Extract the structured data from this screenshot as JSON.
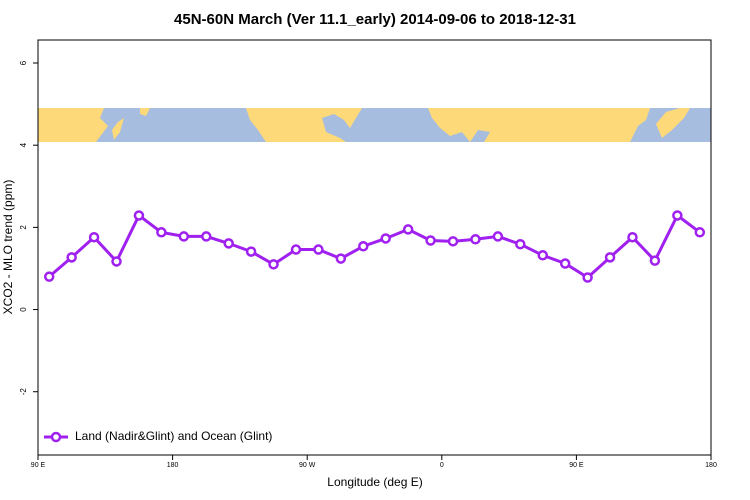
{
  "chart_data": {
    "type": "line",
    "title": "45N-60N March (Ver 11.1_early)   2014-09-06 to 2018-12-31",
    "x_label": "Longitude (deg E)",
    "y_label": "XCO2 - MLO trend (ppm)",
    "x": [
      97.5,
      112.5,
      127.5,
      142.5,
      157.5,
      172.5,
      187.5,
      202.5,
      217.5,
      232.5,
      247.5,
      262.5,
      277.5,
      292.5,
      307.5,
      322.5,
      337.5,
      352.5,
      367.5,
      382.5,
      397.5,
      412.5,
      427.5,
      442.5,
      457.5,
      472.5,
      487.5,
      502.5,
      517.5,
      532.5
    ],
    "series": [
      {
        "name": "Land (Nadir&Glint) and Ocean (Glint)",
        "color": "#a020f0",
        "values": [
          0.8,
          1.27,
          1.76,
          1.17,
          2.29,
          1.88,
          1.78,
          1.78,
          1.61,
          1.41,
          1.1,
          1.46,
          1.46,
          1.24,
          1.54,
          1.73,
          1.95,
          1.68,
          1.66,
          1.71,
          1.78,
          1.59,
          1.32,
          1.12,
          0.78,
          1.27,
          1.76,
          1.19,
          2.29,
          1.88
        ]
      }
    ],
    "xlim": [
      90,
      540
    ],
    "xticks": [
      {
        "value": 90,
        "label": "90 E"
      },
      180,
      {
        "value": 270,
        "label": "90 W"
      },
      {
        "value": 360,
        "label": "0"
      },
      {
        "value": 450,
        "label": "90 E"
      },
      {
        "value": 540,
        "label": "180"
      }
    ],
    "ylim": [
      -3.54,
      6.56
    ],
    "yticks": [
      -2,
      0,
      2,
      4,
      6
    ],
    "grid": false,
    "legend": "bottom-left"
  }
}
